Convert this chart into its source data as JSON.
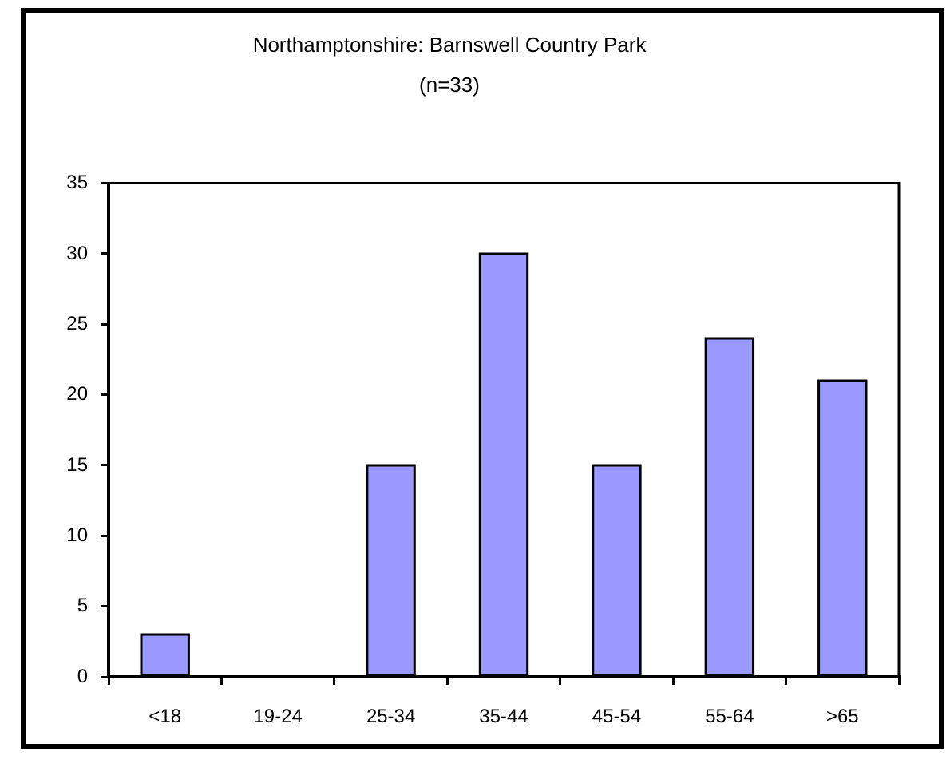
{
  "chart_data": {
    "type": "bar",
    "title": "Northamptonshire: Barnswell Country Park",
    "subtitle": "(n=33)",
    "categories": [
      "<18",
      "19-24",
      "25-34",
      "35-44",
      "45-54",
      "55-64",
      ">65"
    ],
    "values": [
      3,
      0,
      15,
      30,
      15,
      24,
      21
    ],
    "color": "#9999ff",
    "ylim": [
      0,
      35
    ],
    "yticks": [
      0,
      5,
      10,
      15,
      20,
      25,
      30,
      35
    ],
    "grid": false,
    "legend": false
  }
}
